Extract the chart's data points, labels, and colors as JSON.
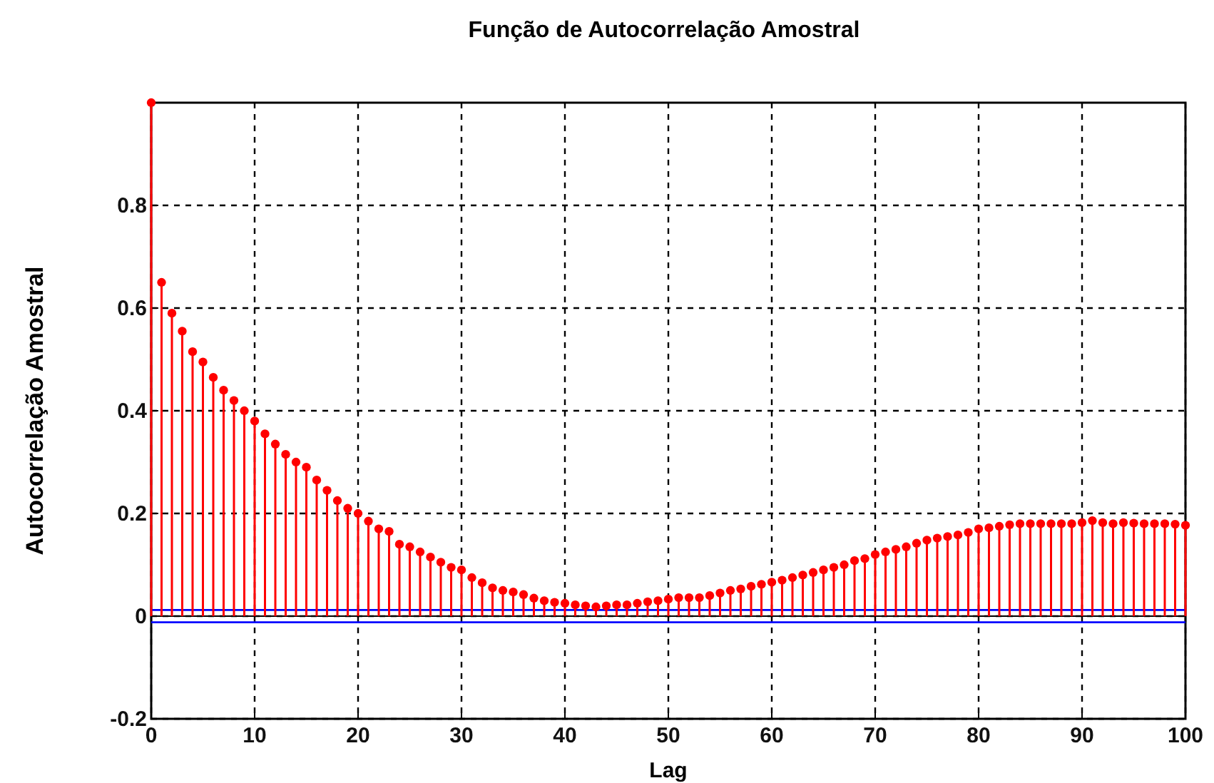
{
  "chart_data": {
    "type": "lollipop",
    "title": "Função de Autocorrelação Amostral",
    "xlabel": "Lag",
    "ylabel": "Autocorrelação Amostral",
    "x": [
      0,
      1,
      2,
      3,
      4,
      5,
      6,
      7,
      8,
      9,
      10,
      11,
      12,
      13,
      14,
      15,
      16,
      17,
      18,
      19,
      20,
      21,
      22,
      23,
      24,
      25,
      26,
      27,
      28,
      29,
      30,
      31,
      32,
      33,
      34,
      35,
      36,
      37,
      38,
      39,
      40,
      41,
      42,
      43,
      44,
      45,
      46,
      47,
      48,
      49,
      50,
      51,
      52,
      53,
      54,
      55,
      56,
      57,
      58,
      59,
      60,
      61,
      62,
      63,
      64,
      65,
      66,
      67,
      68,
      69,
      70,
      71,
      72,
      73,
      74,
      75,
      76,
      77,
      78,
      79,
      80,
      81,
      82,
      83,
      84,
      85,
      86,
      87,
      88,
      89,
      90,
      91,
      92,
      93,
      94,
      95,
      96,
      97,
      98,
      99,
      100
    ],
    "series": [
      {
        "color": "#ff0000",
        "values": [
          1,
          0.65,
          0.59,
          0.555,
          0.515,
          0.495,
          0.465,
          0.44,
          0.42,
          0.4,
          0.38,
          0.355,
          0.335,
          0.315,
          0.3,
          0.29,
          0.265,
          0.245,
          0.225,
          0.21,
          0.2,
          0.185,
          0.17,
          0.165,
          0.14,
          0.135,
          0.125,
          0.115,
          0.105,
          0.095,
          0.09,
          0.075,
          0.065,
          0.055,
          0.05,
          0.047,
          0.042,
          0.035,
          0.03,
          0.027,
          0.025,
          0.022,
          0.02,
          0.018,
          0.02,
          0.022,
          0.022,
          0.025,
          0.028,
          0.03,
          0.033,
          0.036,
          0.036,
          0.036,
          0.04,
          0.045,
          0.05,
          0.053,
          0.058,
          0.062,
          0.066,
          0.07,
          0.075,
          0.08,
          0.085,
          0.09,
          0.095,
          0.1,
          0.108,
          0.112,
          0.12,
          0.125,
          0.13,
          0.135,
          0.142,
          0.148,
          0.152,
          0.155,
          0.158,
          0.163,
          0.17,
          0.172,
          0.175,
          0.178,
          0.18,
          0.18,
          0.18,
          0.18,
          0.18,
          0.18,
          0.182,
          0.186,
          0.182,
          0.18,
          0.182,
          0.181,
          0.18,
          0.18,
          0.18,
          0.179,
          0.177
        ]
      }
    ],
    "xlim": [
      0,
      100
    ],
    "xticks": [
      0,
      10,
      20,
      30,
      40,
      50,
      60,
      70,
      80,
      90,
      100
    ],
    "ylim": [
      -0.2,
      1
    ],
    "yticks": [
      -0.2,
      0,
      0.2,
      0.4,
      0.6,
      0.8
    ],
    "ref_lines": [
      {
        "axis": "y",
        "value": 0.012,
        "color": "#0000ff"
      },
      {
        "axis": "y",
        "value": -0.012,
        "color": "#0000ff"
      }
    ],
    "grid": true,
    "marker": "circle"
  }
}
